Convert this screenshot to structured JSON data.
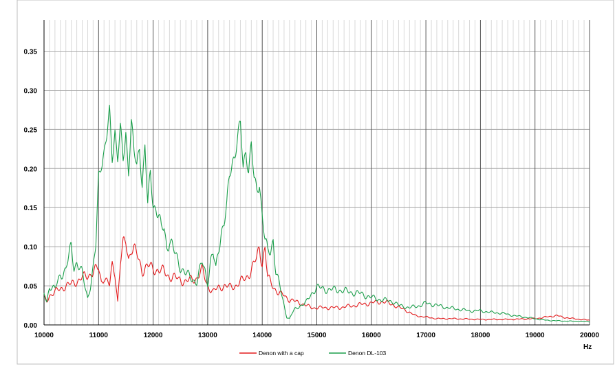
{
  "chart_data": {
    "type": "line",
    "title": "",
    "xlabel": "Hz",
    "ylabel": "",
    "xlim": [
      10000,
      20000
    ],
    "ylim": [
      0,
      0.39
    ],
    "x_major_ticks": [
      10000,
      11000,
      12000,
      13000,
      14000,
      15000,
      16000,
      17000,
      18000,
      19000,
      20000
    ],
    "x_tick_labels": [
      "10000",
      "11000",
      "12000",
      "13000",
      "14000",
      "15000",
      "16000",
      "17000",
      "18000",
      "19000",
      "20000"
    ],
    "y_ticks": [
      0,
      0.05,
      0.1,
      0.15,
      0.2,
      0.25,
      0.3,
      0.35
    ],
    "y_tick_labels": [
      "0.00",
      "0.05",
      "0.10",
      "0.15",
      "0.20",
      "0.25",
      "0.30",
      "0.35"
    ],
    "grid": true,
    "legend_position": "bottom",
    "series": [
      {
        "name": "Denon with a cap",
        "color": "#e31a1c",
        "points": [
          [
            10000,
            0.035
          ],
          [
            10050,
            0.03
          ],
          [
            10100,
            0.038
          ],
          [
            10200,
            0.042
          ],
          [
            10300,
            0.046
          ],
          [
            10400,
            0.05
          ],
          [
            10500,
            0.052
          ],
          [
            10600,
            0.056
          ],
          [
            10700,
            0.06
          ],
          [
            10800,
            0.063
          ],
          [
            10900,
            0.068
          ],
          [
            11000,
            0.072
          ],
          [
            11050,
            0.055
          ],
          [
            11100,
            0.062
          ],
          [
            11200,
            0.05
          ],
          [
            11250,
            0.075
          ],
          [
            11300,
            0.068
          ],
          [
            11350,
            0.03
          ],
          [
            11400,
            0.08
          ],
          [
            11450,
            0.1
          ],
          [
            11500,
            0.108
          ],
          [
            11550,
            0.085
          ],
          [
            11600,
            0.1
          ],
          [
            11700,
            0.09
          ],
          [
            11800,
            0.07
          ],
          [
            11900,
            0.075
          ],
          [
            12000,
            0.072
          ],
          [
            12100,
            0.07
          ],
          [
            12200,
            0.068
          ],
          [
            12300,
            0.062
          ],
          [
            12400,
            0.06
          ],
          [
            12500,
            0.058
          ],
          [
            12600,
            0.055
          ],
          [
            12700,
            0.058
          ],
          [
            12800,
            0.06
          ],
          [
            12900,
            0.07
          ],
          [
            13000,
            0.05
          ],
          [
            13100,
            0.042
          ],
          [
            13200,
            0.048
          ],
          [
            13300,
            0.05
          ],
          [
            13400,
            0.048
          ],
          [
            13500,
            0.05
          ],
          [
            13600,
            0.055
          ],
          [
            13700,
            0.06
          ],
          [
            13800,
            0.07
          ],
          [
            13900,
            0.085
          ],
          [
            13950,
            0.1
          ],
          [
            14000,
            0.08
          ],
          [
            14050,
            0.098
          ],
          [
            14100,
            0.06
          ],
          [
            14200,
            0.05
          ],
          [
            14300,
            0.04
          ],
          [
            14400,
            0.038
          ],
          [
            14500,
            0.032
          ],
          [
            14600,
            0.03
          ],
          [
            14700,
            0.028
          ],
          [
            14800,
            0.025
          ],
          [
            14900,
            0.022
          ],
          [
            15000,
            0.022
          ],
          [
            15200,
            0.022
          ],
          [
            15400,
            0.022
          ],
          [
            15600,
            0.024
          ],
          [
            15800,
            0.026
          ],
          [
            16000,
            0.028
          ],
          [
            16200,
            0.03
          ],
          [
            16400,
            0.026
          ],
          [
            16500,
            0.022
          ],
          [
            16600,
            0.02
          ],
          [
            16700,
            0.016
          ],
          [
            16800,
            0.012
          ],
          [
            17000,
            0.01
          ],
          [
            17200,
            0.008
          ],
          [
            17500,
            0.008
          ],
          [
            18000,
            0.007
          ],
          [
            18500,
            0.007
          ],
          [
            19000,
            0.008
          ],
          [
            19200,
            0.01
          ],
          [
            19400,
            0.012
          ],
          [
            19500,
            0.01
          ],
          [
            19700,
            0.008
          ],
          [
            20000,
            0.006
          ]
        ]
      },
      {
        "name": "Denon DL-103",
        "color": "#1a9e4a",
        "points": [
          [
            10000,
            0.04
          ],
          [
            10050,
            0.03
          ],
          [
            10100,
            0.05
          ],
          [
            10200,
            0.045
          ],
          [
            10300,
            0.065
          ],
          [
            10400,
            0.07
          ],
          [
            10450,
            0.085
          ],
          [
            10500,
            0.1
          ],
          [
            10550,
            0.075
          ],
          [
            10600,
            0.08
          ],
          [
            10700,
            0.065
          ],
          [
            10750,
            0.05
          ],
          [
            10800,
            0.035
          ],
          [
            10850,
            0.05
          ],
          [
            10900,
            0.07
          ],
          [
            10950,
            0.1
          ],
          [
            11000,
            0.19
          ],
          [
            11050,
            0.21
          ],
          [
            11100,
            0.22
          ],
          [
            11150,
            0.24
          ],
          [
            11200,
            0.27
          ],
          [
            11250,
            0.215
          ],
          [
            11300,
            0.25
          ],
          [
            11350,
            0.215
          ],
          [
            11400,
            0.248
          ],
          [
            11450,
            0.21
          ],
          [
            11500,
            0.245
          ],
          [
            11550,
            0.2
          ],
          [
            11600,
            0.26
          ],
          [
            11650,
            0.22
          ],
          [
            11700,
            0.2
          ],
          [
            11750,
            0.23
          ],
          [
            11800,
            0.18
          ],
          [
            11850,
            0.23
          ],
          [
            11900,
            0.15
          ],
          [
            11950,
            0.195
          ],
          [
            12000,
            0.155
          ],
          [
            12050,
            0.15
          ],
          [
            12100,
            0.14
          ],
          [
            12150,
            0.12
          ],
          [
            12200,
            0.125
          ],
          [
            12250,
            0.1
          ],
          [
            12300,
            0.11
          ],
          [
            12400,
            0.09
          ],
          [
            12500,
            0.075
          ],
          [
            12600,
            0.065
          ],
          [
            12700,
            0.06
          ],
          [
            12800,
            0.055
          ],
          [
            12900,
            0.08
          ],
          [
            12950,
            0.07
          ],
          [
            13000,
            0.055
          ],
          [
            13050,
            0.08
          ],
          [
            13100,
            0.09
          ],
          [
            13150,
            0.07
          ],
          [
            13200,
            0.1
          ],
          [
            13250,
            0.12
          ],
          [
            13300,
            0.13
          ],
          [
            13350,
            0.15
          ],
          [
            13400,
            0.19
          ],
          [
            13450,
            0.21
          ],
          [
            13500,
            0.22
          ],
          [
            13550,
            0.24
          ],
          [
            13600,
            0.255
          ],
          [
            13650,
            0.2
          ],
          [
            13700,
            0.225
          ],
          [
            13750,
            0.2
          ],
          [
            13800,
            0.23
          ],
          [
            13850,
            0.185
          ],
          [
            13900,
            0.17
          ],
          [
            13950,
            0.185
          ],
          [
            14000,
            0.14
          ],
          [
            14050,
            0.11
          ],
          [
            14100,
            0.09
          ],
          [
            14150,
            0.095
          ],
          [
            14200,
            0.11
          ],
          [
            14250,
            0.07
          ],
          [
            14300,
            0.055
          ],
          [
            14350,
            0.04
          ],
          [
            14400,
            0.025
          ],
          [
            14450,
            0.01
          ],
          [
            14500,
            0.008
          ],
          [
            14550,
            0.015
          ],
          [
            14600,
            0.02
          ],
          [
            14700,
            0.025
          ],
          [
            14800,
            0.028
          ],
          [
            14900,
            0.04
          ],
          [
            15000,
            0.048
          ],
          [
            15200,
            0.045
          ],
          [
            15400,
            0.045
          ],
          [
            15600,
            0.042
          ],
          [
            15800,
            0.04
          ],
          [
            16000,
            0.035
          ],
          [
            16200,
            0.032
          ],
          [
            16400,
            0.03
          ],
          [
            16500,
            0.025
          ],
          [
            16700,
            0.022
          ],
          [
            16900,
            0.025
          ],
          [
            17000,
            0.028
          ],
          [
            17200,
            0.025
          ],
          [
            17400,
            0.022
          ],
          [
            17600,
            0.02
          ],
          [
            17800,
            0.018
          ],
          [
            18000,
            0.018
          ],
          [
            18200,
            0.016
          ],
          [
            18400,
            0.015
          ],
          [
            18600,
            0.012
          ],
          [
            18800,
            0.01
          ],
          [
            19000,
            0.008
          ],
          [
            19200,
            0.006
          ],
          [
            19500,
            0.005
          ],
          [
            20000,
            0.004
          ]
        ]
      }
    ]
  }
}
